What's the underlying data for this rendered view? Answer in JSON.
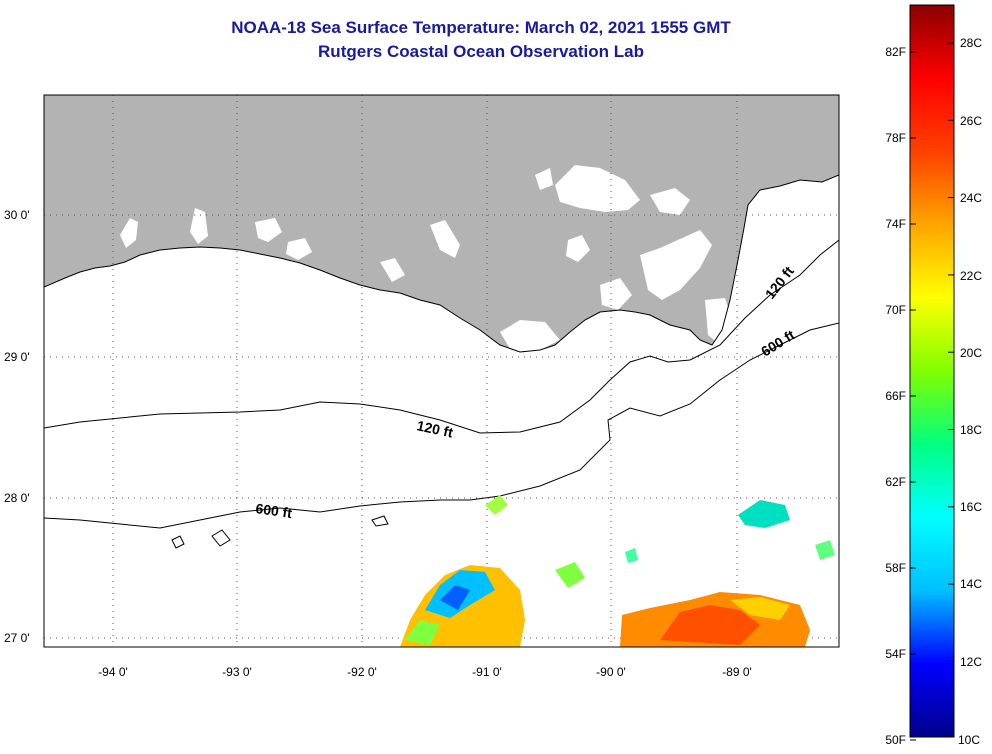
{
  "header": {
    "title": "NOAA-18 Sea Surface Temperature:  March 02, 2021 1555 GMT",
    "subtitle": "Rutgers Coastal Ocean Observation Lab"
  },
  "axes": {
    "lat_labels": [
      "30 0'",
      "29 0'",
      "28 0'",
      "27 0'"
    ],
    "lon_labels": [
      "-94 0'",
      "-93 0'",
      "-92 0'",
      "-91 0'",
      "-90 0'",
      "-89 0'"
    ]
  },
  "contours": {
    "shelf_120": "120 ft",
    "shelf_600": "600 ft"
  },
  "colorbar": {
    "fahrenheit": [
      "82F",
      "78F",
      "74F",
      "70F",
      "66F",
      "62F",
      "58F",
      "54F",
      "50F"
    ],
    "celsius": [
      "28C",
      "26C",
      "24C",
      "22C",
      "20C",
      "18C",
      "16C",
      "14C",
      "12C",
      "10C"
    ],
    "colors": [
      "#00008b",
      "#0000ff",
      "#00bfff",
      "#00ffff",
      "#00ff80",
      "#80ff00",
      "#ffff00",
      "#ffa500",
      "#ff4000",
      "#ff0000",
      "#8b0000"
    ]
  },
  "colors": {
    "land": "#b3b3b3",
    "ocean": "#ffffff",
    "title": "#1a1aa0"
  }
}
